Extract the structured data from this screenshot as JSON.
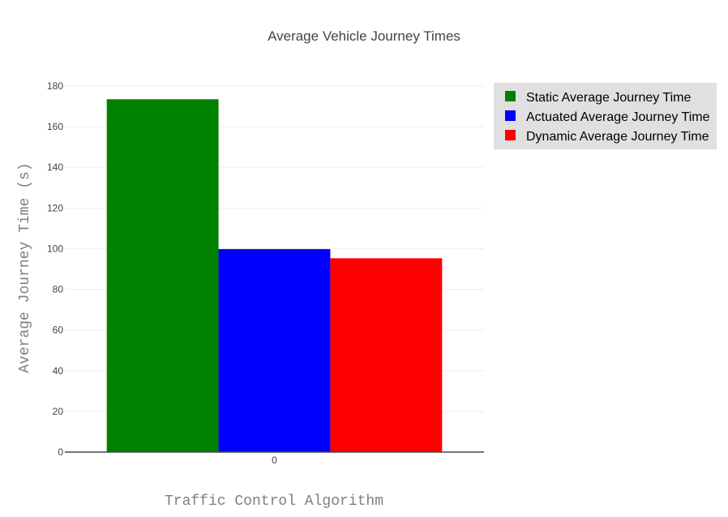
{
  "chart_data": {
    "type": "bar",
    "title": "Average Vehicle Journey Times",
    "xlabel": "Traffic Control Algorithm",
    "ylabel": "Average Journey Time (s)",
    "categories": [
      "0"
    ],
    "series": [
      {
        "name": "Static Average Journey Time",
        "values": [
          173.5
        ],
        "color": "#008000"
      },
      {
        "name": "Actuated Average Journey Time",
        "values": [
          99.8
        ],
        "color": "#0000ff"
      },
      {
        "name": "Dynamic Average Journey Time",
        "values": [
          95.3
        ],
        "color": "#ff0000"
      }
    ],
    "ylim": [
      0,
      180
    ],
    "yticks": [
      0,
      20,
      40,
      60,
      80,
      100,
      120,
      140,
      160,
      180
    ],
    "grid": true,
    "legend_position": "top-right",
    "legend_background": "#e0e0e0"
  }
}
